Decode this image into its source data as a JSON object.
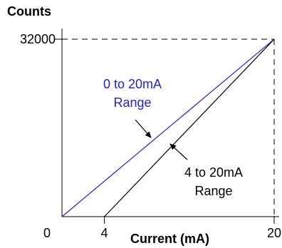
{
  "chart_data": {
    "type": "line",
    "title": "",
    "xlabel": "Current (mA)",
    "ylabel": "Counts",
    "xlim": [
      0,
      20
    ],
    "ylim": [
      0,
      32000
    ],
    "grid": false,
    "x_ticks": [
      0,
      4,
      20
    ],
    "x_tick_labels": [
      "0",
      "4",
      "20"
    ],
    "y_ticks": [
      32000
    ],
    "y_tick_labels": [
      "32000"
    ],
    "series": [
      {
        "color": "#1f1fd6",
        "points": [
          [
            0,
            0
          ],
          [
            20,
            32000
          ]
        ]
      },
      {
        "color": "#000000",
        "points": [
          [
            4,
            0
          ],
          [
            20,
            32000
          ]
        ]
      }
    ],
    "annotations": [
      {
        "lines": [
          "0 to 20mA",
          "Range"
        ],
        "color": "#1f1fd6",
        "points_to_series": 0
      },
      {
        "lines": [
          "4 to 20mA",
          "Range"
        ],
        "color": "#000000",
        "points_to_series": 1
      }
    ],
    "reference_lines": [
      {
        "type": "horizontal",
        "y": 32000,
        "style": "dashed"
      },
      {
        "type": "vertical",
        "x": 20,
        "style": "dashed"
      }
    ]
  }
}
